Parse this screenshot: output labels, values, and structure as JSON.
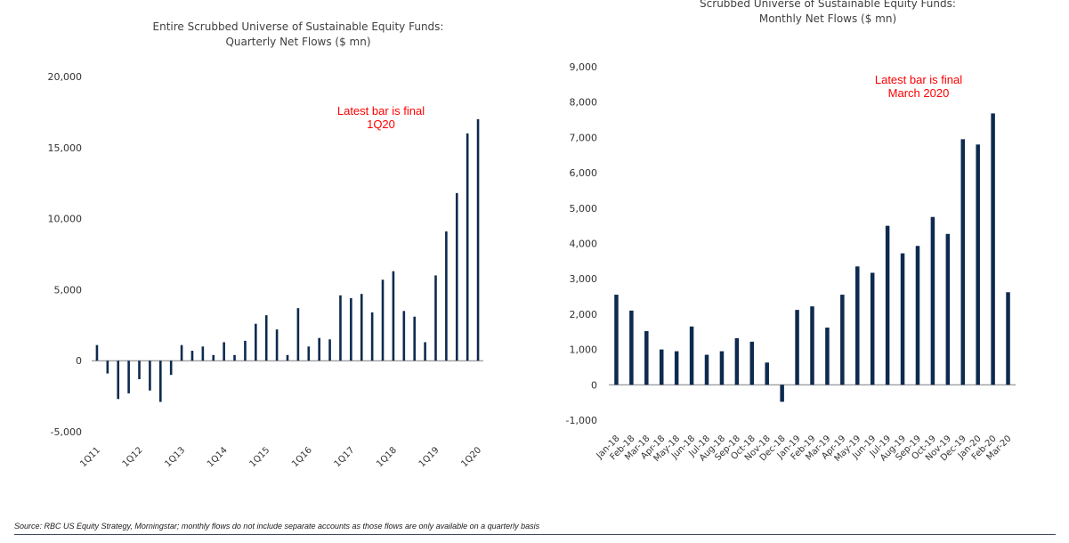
{
  "colors": {
    "bar": "#0d2a4f",
    "annotation": "#ff0000",
    "axis": "#7f7f7f"
  },
  "charts": {
    "left": {
      "title_line1": "Entire Scrubbed Universe of Sustainable Equity Funds:",
      "title_line2": "Quarterly Net  Flows ($ mn)"
    },
    "right": {
      "title_line1": "Scrubbed Universe of Sustainable Equity Funds:",
      "title_line2": "Monthly Net  Flows ($ mn)"
    }
  },
  "chart_data": [
    {
      "type": "bar",
      "title": "Entire Scrubbed Universe of Sustainable Equity Funds: Quarterly Net Flows ($ mn)",
      "xlabel": "",
      "ylabel": "",
      "ylim": [
        -5000,
        20000
      ],
      "yticks": [
        -5000,
        0,
        5000,
        10000,
        15000,
        20000
      ],
      "ytick_labels": [
        "-5,000",
        "0",
        "5,000",
        "10,000",
        "15,000",
        "20,000"
      ],
      "categories": [
        "1Q11",
        "2Q11",
        "3Q11",
        "4Q11",
        "1Q12",
        "2Q12",
        "3Q12",
        "4Q12",
        "1Q13",
        "2Q13",
        "3Q13",
        "4Q13",
        "1Q14",
        "2Q14",
        "3Q14",
        "4Q14",
        "1Q15",
        "2Q15",
        "3Q15",
        "4Q15",
        "1Q16",
        "2Q16",
        "3Q16",
        "4Q16",
        "1Q17",
        "2Q17",
        "3Q17",
        "4Q17",
        "1Q18",
        "2Q18",
        "3Q18",
        "4Q18",
        "1Q19",
        "2Q19",
        "3Q19",
        "4Q19",
        "1Q20"
      ],
      "xtick_labels": [
        "1Q11",
        "1Q12",
        "1Q13",
        "1Q14",
        "1Q15",
        "1Q16",
        "1Q17",
        "1Q18",
        "1Q19",
        "1Q20"
      ],
      "values": [
        1100,
        -900,
        -2700,
        -2300,
        -1300,
        -2100,
        -2900,
        -1000,
        1100,
        700,
        1000,
        400,
        1300,
        400,
        1400,
        2600,
        3200,
        2200,
        400,
        3700,
        1000,
        1600,
        1500,
        4600,
        4400,
        4700,
        3400,
        5700,
        6300,
        3500,
        3100,
        1300,
        6000,
        9100,
        11800,
        16000,
        17000
      ],
      "annotation": {
        "line1": "Latest bar is final",
        "line2": "1Q20"
      }
    },
    {
      "type": "bar",
      "title": "Scrubbed Universe of Sustainable Equity Funds: Monthly Net Flows ($ mn)",
      "xlabel": "",
      "ylabel": "",
      "ylim": [
        -1000,
        9000
      ],
      "yticks": [
        -1000,
        0,
        1000,
        2000,
        3000,
        4000,
        5000,
        6000,
        7000,
        8000,
        9000
      ],
      "ytick_labels": [
        "-1,000",
        "0",
        "1,000",
        "2,000",
        "3,000",
        "4,000",
        "5,000",
        "6,000",
        "7,000",
        "8,000",
        "9,000"
      ],
      "categories": [
        "Jan-18",
        "Feb-18",
        "Mar-18",
        "Apr-18",
        "May-18",
        "Jun-18",
        "Jul-18",
        "Aug-18",
        "Sep-18",
        "Oct-18",
        "Nov-18",
        "Dec-18",
        "Jan-19",
        "Feb-19",
        "Mar-19",
        "Apr-19",
        "May-19",
        "Jun-19",
        "Jul-19",
        "Aug-19",
        "Sep-19",
        "Oct-19",
        "Nov-19",
        "Dec-19",
        "Jan-20",
        "Feb-20",
        "Mar-20"
      ],
      "values": [
        2550,
        2100,
        1520,
        1000,
        950,
        1650,
        850,
        950,
        1320,
        1220,
        630,
        -480,
        2120,
        2220,
        1620,
        2550,
        3350,
        3170,
        4500,
        3720,
        3930,
        4750,
        4270,
        6950,
        6800,
        7680,
        2620
      ],
      "annotation": {
        "line1": "Latest bar is final",
        "line2": "March 2020"
      }
    }
  ],
  "source_note": "Source: RBC US Equity Strategy, Morningstar; monthly flows do not include separate accounts as those flows are only available on a quarterly basis"
}
